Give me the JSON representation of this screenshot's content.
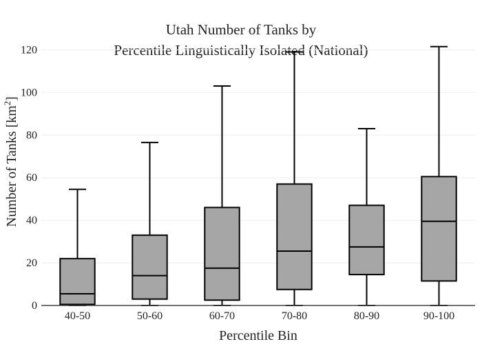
{
  "chart_data": {
    "type": "box",
    "title_lines": [
      "Utah Number of Tanks by",
      "Percentile Linguistically Isolated (National)"
    ],
    "xlabel": "Percentile Bin",
    "ylabel": {
      "main": "Number of Tanks  [km",
      "sup": "2",
      "close": "]"
    },
    "ylim": [
      0,
      124
    ],
    "yticks": [
      0,
      20,
      40,
      60,
      80,
      100,
      120
    ],
    "grid": true,
    "categories": [
      "40-50",
      "50-60",
      "60-70",
      "70-80",
      "80-90",
      "90-100"
    ],
    "boxes": [
      {
        "category": "40-50",
        "min": 0,
        "q1": 0.5,
        "median": 5.5,
        "q3": 22,
        "max": 54.5
      },
      {
        "category": "50-60",
        "min": 0,
        "q1": 3,
        "median": 14,
        "q3": 33,
        "max": 76.5
      },
      {
        "category": "60-70",
        "min": 0,
        "q1": 2.5,
        "median": 17.5,
        "q3": 46,
        "max": 103
      },
      {
        "category": "70-80",
        "min": 0,
        "q1": 7.5,
        "median": 25.5,
        "q3": 57,
        "max": 119
      },
      {
        "category": "80-90",
        "min": 0,
        "q1": 14.5,
        "median": 27.5,
        "q3": 47,
        "max": 83
      },
      {
        "category": "90-100",
        "min": 0,
        "q1": 11.5,
        "median": 39.5,
        "q3": 60.5,
        "max": 121.5
      }
    ],
    "colors": {
      "box_fill": "#a6a6a6",
      "stroke": "#000000",
      "grid": "#eeeeee",
      "axis": "#444444"
    }
  }
}
